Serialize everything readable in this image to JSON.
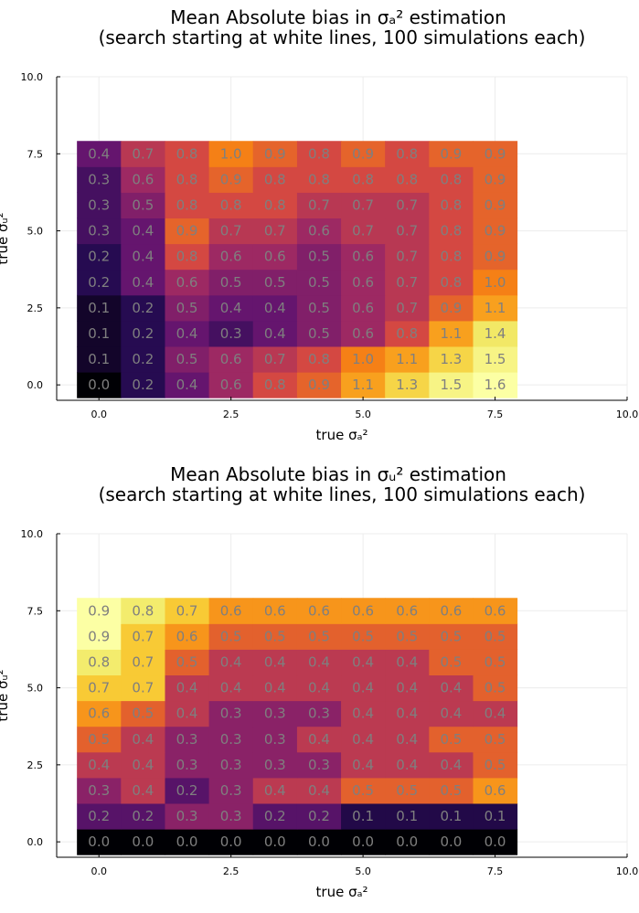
{
  "chart_data": [
    {
      "type": "heatmap",
      "title": "Mean Absolute bias in σₐ² estimation",
      "subtitle": "(search starting at white lines, 100 simulations each)",
      "xlabel": "true σₐ²",
      "ylabel": "true σᵤ²",
      "xlim": [
        0,
        10
      ],
      "ylim": [
        0,
        10
      ],
      "x_ticks": [
        "0.0",
        "2.5",
        "5.0",
        "7.5",
        "10.0"
      ],
      "y_ticks": [
        "0.0",
        "2.5",
        "5.0",
        "7.5",
        "10.0"
      ],
      "x": [
        0.0,
        0.833,
        1.667,
        2.5,
        3.333,
        4.167,
        5.0,
        5.833,
        6.667,
        7.5
      ],
      "y": [
        0.0,
        0.833,
        1.667,
        2.5,
        3.333,
        4.167,
        5.0,
        5.833,
        6.667,
        7.5
      ],
      "values": [
        [
          0.0,
          0.2,
          0.4,
          0.6,
          0.8,
          0.9,
          1.1,
          1.3,
          1.5,
          1.6
        ],
        [
          0.1,
          0.2,
          0.5,
          0.6,
          0.7,
          0.8,
          1.0,
          1.1,
          1.3,
          1.5
        ],
        [
          0.1,
          0.2,
          0.4,
          0.3,
          0.4,
          0.5,
          0.6,
          0.8,
          1.1,
          1.4
        ],
        [
          0.1,
          0.2,
          0.5,
          0.4,
          0.4,
          0.5,
          0.6,
          0.7,
          0.9,
          1.1
        ],
        [
          0.2,
          0.4,
          0.6,
          0.5,
          0.5,
          0.5,
          0.6,
          0.7,
          0.8,
          1.0
        ],
        [
          0.2,
          0.4,
          0.8,
          0.6,
          0.6,
          0.5,
          0.6,
          0.7,
          0.8,
          0.9
        ],
        [
          0.3,
          0.4,
          0.9,
          0.7,
          0.7,
          0.6,
          0.7,
          0.7,
          0.8,
          0.9
        ],
        [
          0.3,
          0.5,
          0.8,
          0.8,
          0.8,
          0.7,
          0.7,
          0.7,
          0.8,
          0.9
        ],
        [
          0.3,
          0.6,
          0.8,
          0.9,
          0.8,
          0.8,
          0.8,
          0.8,
          0.8,
          0.9
        ],
        [
          0.4,
          0.7,
          0.8,
          1.0,
          0.9,
          0.8,
          0.9,
          0.8,
          0.9,
          0.9
        ]
      ],
      "color_scale": "inferno",
      "value_range": [
        0,
        1.6
      ]
    },
    {
      "type": "heatmap",
      "title": "Mean Absolute bias in σᵤ² estimation",
      "subtitle": "(search starting at white lines, 100 simulations each)",
      "xlabel": "true σₐ²",
      "ylabel": "true σᵤ²",
      "xlim": [
        0,
        10
      ],
      "ylim": [
        0,
        10
      ],
      "x_ticks": [
        "0.0",
        "2.5",
        "5.0",
        "7.5",
        "10.0"
      ],
      "y_ticks": [
        "0.0",
        "2.5",
        "5.0",
        "7.5",
        "10.0"
      ],
      "x": [
        0.0,
        0.833,
        1.667,
        2.5,
        3.333,
        4.167,
        5.0,
        5.833,
        6.667,
        7.5
      ],
      "y": [
        0.0,
        0.833,
        1.667,
        2.5,
        3.333,
        4.167,
        5.0,
        5.833,
        6.667,
        7.5
      ],
      "values": [
        [
          0.0,
          0.0,
          0.0,
          0.0,
          0.0,
          0.0,
          0.0,
          0.0,
          0.0,
          0.0
        ],
        [
          0.2,
          0.2,
          0.3,
          0.3,
          0.2,
          0.2,
          0.1,
          0.1,
          0.1,
          0.1
        ],
        [
          0.3,
          0.4,
          0.2,
          0.3,
          0.4,
          0.4,
          0.5,
          0.5,
          0.5,
          0.6
        ],
        [
          0.4,
          0.4,
          0.3,
          0.3,
          0.3,
          0.3,
          0.4,
          0.4,
          0.4,
          0.5
        ],
        [
          0.5,
          0.4,
          0.3,
          0.3,
          0.3,
          0.4,
          0.4,
          0.4,
          0.5,
          0.5
        ],
        [
          0.6,
          0.5,
          0.4,
          0.3,
          0.3,
          0.3,
          0.4,
          0.4,
          0.4,
          0.4
        ],
        [
          0.7,
          0.7,
          0.4,
          0.4,
          0.4,
          0.4,
          0.4,
          0.4,
          0.4,
          0.5
        ],
        [
          0.8,
          0.7,
          0.5,
          0.4,
          0.4,
          0.4,
          0.4,
          0.4,
          0.5,
          0.5
        ],
        [
          0.9,
          0.7,
          0.6,
          0.5,
          0.5,
          0.5,
          0.5,
          0.5,
          0.5,
          0.5
        ],
        [
          0.9,
          0.8,
          0.7,
          0.6,
          0.6,
          0.6,
          0.6,
          0.6,
          0.6,
          0.6
        ]
      ],
      "color_scale": "inferno",
      "value_range": [
        0,
        0.9
      ]
    }
  ]
}
